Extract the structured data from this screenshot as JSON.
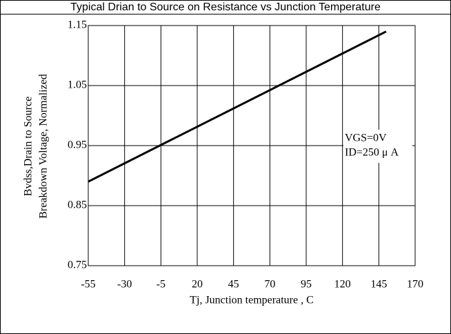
{
  "chart_data": {
    "type": "line",
    "title": "Typical Drian to Source on Resistance vs Junction Temperature",
    "xlabel": "Tj, Junction temperature , C",
    "ylabel": [
      "Bvdss,Drain to Source",
      "Breakdown Voltage, Normalized"
    ],
    "annotations": [
      "VGS=0V",
      "ID=250 μ A"
    ],
    "series": [
      {
        "color": "#000000",
        "x": [
          -55,
          150
        ],
        "values": [
          0.89,
          1.14
        ]
      }
    ],
    "xlim": [
      -55,
      170
    ],
    "xticks": [
      -55,
      -30,
      -5,
      20,
      45,
      70,
      95,
      120,
      145,
      170
    ],
    "ylim": [
      0.75,
      1.15
    ],
    "yticks": [
      0.75,
      0.85,
      0.95,
      1.05,
      1.15
    ],
    "grid": true
  }
}
